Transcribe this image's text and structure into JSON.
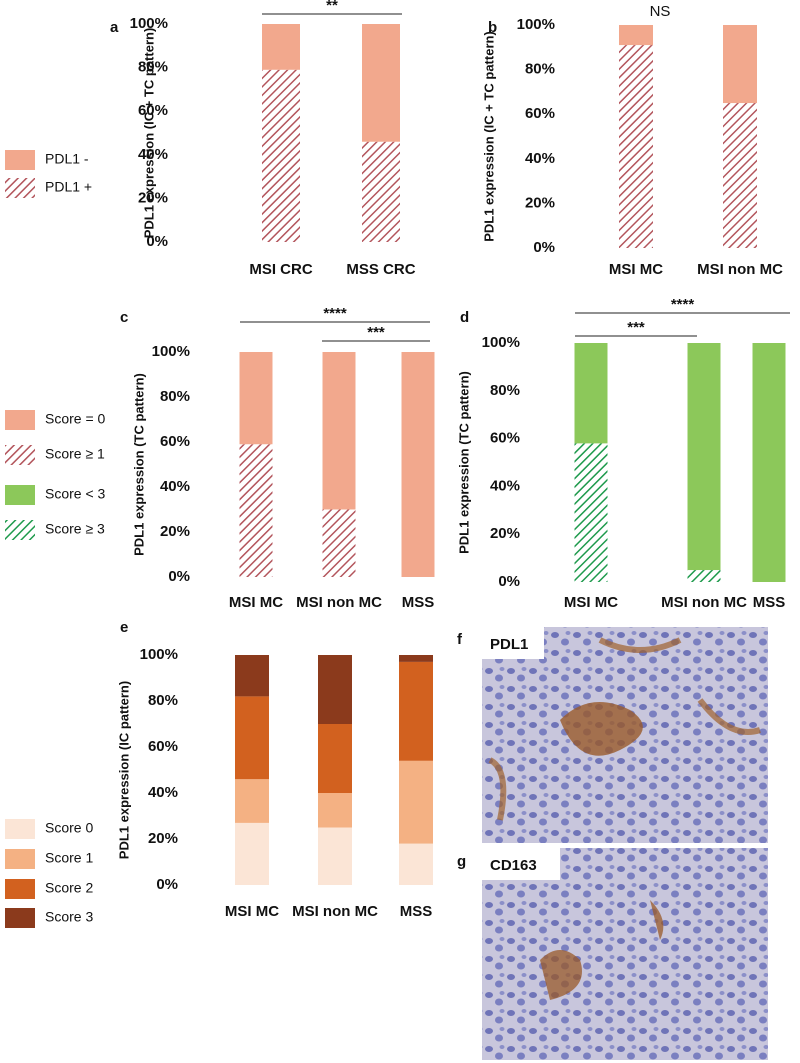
{
  "chart_data": [
    {
      "type": "bar",
      "stacked": true,
      "panel": "a",
      "ylabel": "PDL1 expression (IC + TC pattern)",
      "categories": [
        "MSI CRC",
        "MSS CRC"
      ],
      "series": [
        {
          "name": "PDL1 +",
          "color": "#b3555c",
          "pattern": "hatch",
          "values": [
            79,
            46
          ]
        },
        {
          "name": "PDL1 -",
          "color": "#f2a88d",
          "pattern": "solid",
          "values": [
            21,
            54
          ]
        }
      ],
      "ylim": [
        0,
        100
      ],
      "yticks": [
        {
          "value": 0,
          "label": "0%"
        },
        {
          "value": 20,
          "label": "20%"
        },
        {
          "value": 40,
          "label": "40%"
        },
        {
          "value": 60,
          "label": "60%"
        },
        {
          "value": 80,
          "label": "80%"
        },
        {
          "value": 100,
          "label": "100%"
        }
      ],
      "annotations": [
        "**"
      ]
    },
    {
      "type": "bar",
      "stacked": true,
      "panel": "b",
      "ylabel": "PDL1 expression (IC + TC pattern)",
      "categories": [
        "MSI MC",
        "MSI non MC"
      ],
      "series": [
        {
          "color": "#b3555c",
          "pattern": "hatch",
          "values": [
            91,
            65
          ]
        },
        {
          "color": "#f2a88d",
          "pattern": "solid",
          "values": [
            9,
            35
          ]
        }
      ],
      "ylim": [
        0,
        100
      ],
      "yticks": [
        {
          "value": 0,
          "label": "0%"
        },
        {
          "value": 20,
          "label": "20%"
        },
        {
          "value": 40,
          "label": "40%"
        },
        {
          "value": 60,
          "label": "60%"
        },
        {
          "value": 80,
          "label": "80%"
        },
        {
          "value": 100,
          "label": "100%"
        }
      ],
      "annotations": [
        "NS"
      ]
    },
    {
      "type": "bar",
      "stacked": true,
      "panel": "c",
      "ylabel": "PDL1 expression (TC pattern)",
      "categories": [
        "MSI MC",
        "MSI non MC",
        "MSS"
      ],
      "series": [
        {
          "name": "Score ≥ 1",
          "color": "#b3555c",
          "pattern": "hatch",
          "values": [
            59,
            30,
            0
          ]
        },
        {
          "name": "Score = 0",
          "color": "#f2a88d",
          "pattern": "solid",
          "values": [
            41,
            70,
            100
          ]
        }
      ],
      "ylim": [
        0,
        100
      ],
      "yticks": [
        {
          "value": 0,
          "label": "0%"
        },
        {
          "value": 20,
          "label": "20%"
        },
        {
          "value": 40,
          "label": "40%"
        },
        {
          "value": 60,
          "label": "60%"
        },
        {
          "value": 80,
          "label": "80%"
        },
        {
          "value": 100,
          "label": "100%"
        }
      ],
      "annotations": [
        "****",
        "***"
      ]
    },
    {
      "type": "bar",
      "stacked": true,
      "panel": "d",
      "ylabel": "PDL1 expression (TC pattern)",
      "categories": [
        "MSI MC",
        "MSI non MC",
        "MSS"
      ],
      "series": [
        {
          "name": "Score ≥ 3",
          "color": "#1e9a4c",
          "pattern": "hatch",
          "values": [
            58,
            5,
            0
          ]
        },
        {
          "name": "Score < 3",
          "color": "#8cc85a",
          "pattern": "solid",
          "values": [
            42,
            95,
            100
          ]
        }
      ],
      "ylim": [
        0,
        100
      ],
      "yticks": [
        {
          "value": 0,
          "label": "0%"
        },
        {
          "value": 20,
          "label": "20%"
        },
        {
          "value": 40,
          "label": "40%"
        },
        {
          "value": 60,
          "label": "60%"
        },
        {
          "value": 80,
          "label": "80%"
        },
        {
          "value": 100,
          "label": "100%"
        }
      ],
      "annotations": [
        "***",
        "****"
      ]
    },
    {
      "type": "bar",
      "stacked": true,
      "panel": "e",
      "ylabel": "PDL1 expression (IC pattern)",
      "categories": [
        "MSI MC",
        "MSI non MC",
        "MSS"
      ],
      "series": [
        {
          "name": "Score 0",
          "color": "#fbe5d6",
          "pattern": "solid",
          "values": [
            27,
            25,
            18
          ]
        },
        {
          "name": "Score 1",
          "color": "#f4b183",
          "pattern": "solid",
          "values": [
            19,
            15,
            36
          ]
        },
        {
          "name": "Score 2",
          "color": "#d2611f",
          "pattern": "solid",
          "values": [
            36,
            30,
            43
          ]
        },
        {
          "name": "Score 3",
          "color": "#8b3a1c",
          "pattern": "solid",
          "values": [
            18,
            30,
            3
          ]
        }
      ],
      "ylim": [
        0,
        100
      ],
      "yticks": [
        {
          "value": 0,
          "label": "0%"
        },
        {
          "value": 20,
          "label": "20%"
        },
        {
          "value": 40,
          "label": "40%"
        },
        {
          "value": 60,
          "label": "60%"
        },
        {
          "value": 80,
          "label": "80%"
        },
        {
          "value": 100,
          "label": "100%"
        }
      ],
      "annotations": []
    }
  ],
  "images": [
    {
      "panel": "f",
      "label": "PDL1"
    },
    {
      "panel": "g",
      "label": "CD163"
    }
  ]
}
